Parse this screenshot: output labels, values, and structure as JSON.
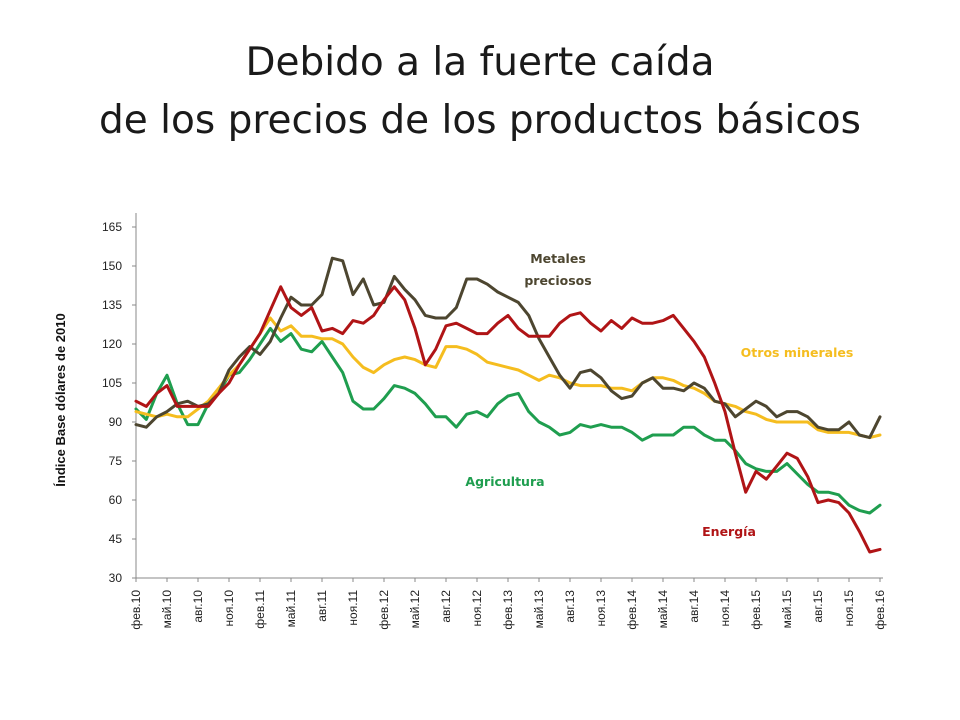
{
  "slide": {
    "title_line1": "Debido a la fuerte caída",
    "title_line2": "de los precios de los productos básicos"
  },
  "chart_data": {
    "type": "line",
    "title": "",
    "ylabel": "Índice Base dólares de 2010",
    "xlabel": "",
    "ylim": [
      30,
      165
    ],
    "yticks": [
      30,
      45,
      60,
      75,
      90,
      105,
      120,
      135,
      150,
      165
    ],
    "grid": false,
    "x_tick_labels": [
      "фев.10",
      "май.10",
      "авг.10",
      "ноя.10",
      "фев.11",
      "май.11",
      "авг.11",
      "ноя.11",
      "фев.12",
      "май.12",
      "авг.12",
      "ноя.12",
      "фев.13",
      "май.13",
      "авг.13",
      "ноя.13",
      "фев.14",
      "май.14",
      "авг.14",
      "ноя.14",
      "фев.15",
      "май.15",
      "авг.15",
      "ноя.15",
      "фев.16"
    ],
    "x_start": "фев.10",
    "series": [
      {
        "name": "Energía",
        "color": "#b01416",
        "values": [
          98,
          96,
          101,
          104,
          96,
          96,
          96,
          96,
          101,
          105,
          112,
          118,
          124,
          133,
          142,
          134,
          131,
          134,
          125,
          126,
          124,
          129,
          128,
          131,
          137,
          142,
          137,
          126,
          112,
          118,
          127,
          128,
          126,
          124,
          124,
          128,
          131,
          126,
          123,
          123,
          123,
          128,
          131,
          132,
          128,
          125,
          129,
          126,
          130,
          128,
          128,
          129,
          131,
          126,
          121,
          115,
          105,
          94,
          78,
          63,
          71,
          68,
          73,
          78,
          76,
          69,
          59,
          60,
          59,
          55,
          48,
          40,
          41
        ]
      },
      {
        "name": "Agricultura",
        "color": "#1f9e4f",
        "values": [
          95,
          91,
          101,
          108,
          97,
          89,
          89,
          97,
          101,
          108,
          109,
          114,
          120,
          126,
          121,
          124,
          118,
          117,
          121,
          115,
          109,
          98,
          95,
          95,
          99,
          104,
          103,
          101,
          97,
          92,
          92,
          88,
          93,
          94,
          92,
          97,
          100,
          101,
          94,
          90,
          88,
          85,
          86,
          89,
          88,
          89,
          88,
          88,
          86,
          83,
          85,
          85,
          85,
          88,
          88,
          85,
          83,
          83,
          79,
          74,
          72,
          71,
          71,
          74,
          70,
          66,
          63,
          63,
          62,
          58,
          56,
          55,
          58
        ]
      },
      {
        "name": "Otros minerales",
        "color": "#f5bd1f",
        "values": [
          94,
          93,
          92,
          93,
          92,
          92,
          95,
          98,
          103,
          108,
          112,
          118,
          124,
          130,
          125,
          127,
          123,
          123,
          122,
          122,
          120,
          115,
          111,
          109,
          112,
          114,
          115,
          114,
          112,
          111,
          119,
          119,
          118,
          116,
          113,
          112,
          111,
          110,
          108,
          106,
          108,
          107,
          105,
          104,
          104,
          104,
          103,
          103,
          102,
          105,
          107,
          107,
          106,
          104,
          103,
          101,
          98,
          97,
          96,
          94,
          93,
          91,
          90,
          90,
          90,
          90,
          87,
          86,
          86,
          86,
          85,
          84,
          85
        ]
      },
      {
        "name": "Metales preciosos",
        "color": "#4d4630",
        "values": [
          89,
          88,
          92,
          94,
          97,
          98,
          96,
          97,
          101,
          110,
          115,
          119,
          116,
          121,
          130,
          138,
          135,
          135,
          139,
          153,
          152,
          139,
          145,
          135,
          136,
          146,
          141,
          137,
          131,
          130,
          130,
          134,
          145,
          145,
          143,
          140,
          138,
          136,
          131,
          122,
          115,
          108,
          103,
          109,
          110,
          107,
          102,
          99,
          100,
          105,
          107,
          103,
          103,
          102,
          105,
          103,
          98,
          97,
          92,
          95,
          98,
          96,
          92,
          94,
          94,
          92,
          88,
          87,
          87,
          90,
          85,
          84,
          92
        ]
      }
    ]
  },
  "annotations": {
    "metales_line1": "Metales",
    "metales_line2": "preciosos",
    "otros": "Otros minerales",
    "agricultura": "Agricultura",
    "energia": "Energía"
  }
}
